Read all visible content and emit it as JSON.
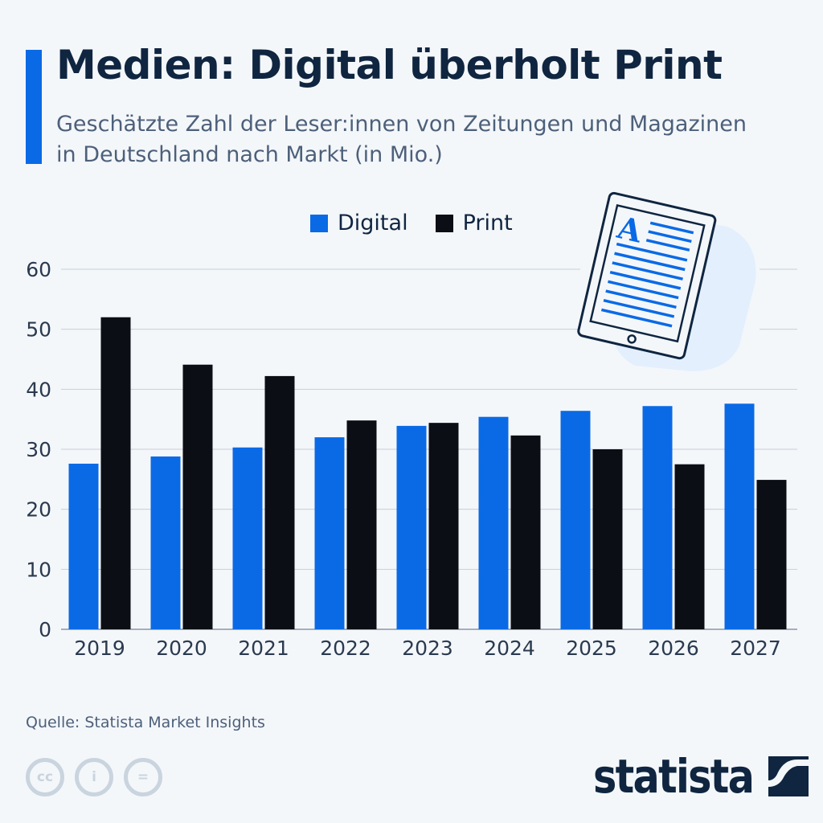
{
  "header": {
    "title": "Medien: Digital überholt Print",
    "subtitle": "Geschätzte Zahl der Leser:innen von Zeitungen und Magazinen in Deutschland nach Markt (in Mio.)"
  },
  "footer": {
    "source": "Quelle: Statista Market Insights",
    "logo": "statista",
    "license_icons": [
      "cc-icon",
      "by-icon",
      "nd-icon"
    ]
  },
  "colors": {
    "digital": "#0a6ae6",
    "print": "#0b0e14",
    "accent": "#0a6ae6",
    "title": "#0f2540"
  },
  "chart_data": {
    "type": "bar",
    "title": "Medien: Digital überholt Print",
    "categories": [
      "2019",
      "2020",
      "2021",
      "2022",
      "2023",
      "2024",
      "2025",
      "2026",
      "2027"
    ],
    "series": [
      {
        "name": "Digital",
        "values": [
          27.6,
          28.8,
          30.3,
          32.0,
          33.9,
          35.4,
          36.4,
          37.2,
          37.6
        ]
      },
      {
        "name": "Print",
        "values": [
          52.0,
          44.1,
          42.2,
          34.8,
          34.4,
          32.3,
          30.0,
          27.5,
          24.9
        ]
      }
    ],
    "yticks": [
      "0",
      "10",
      "20",
      "30",
      "40",
      "50",
      "60"
    ],
    "ylim": [
      0,
      60
    ],
    "grid": true,
    "legend": "top-center",
    "xlabel": "",
    "ylabel": ""
  }
}
